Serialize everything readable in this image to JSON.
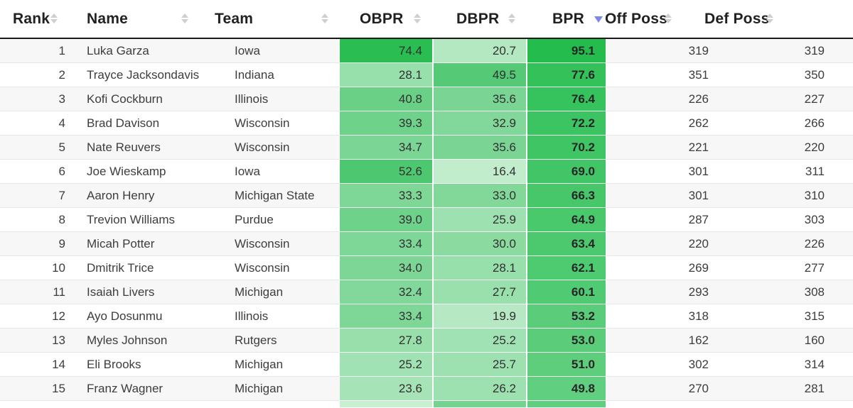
{
  "colors": {
    "row_stripe": "#f7f7f7",
    "row_border": "#e7e7e7",
    "header_border": "#1a1a1a",
    "header_text": "#212121",
    "body_text": "#3d3d3d",
    "sort_icon_inactive": "#cfcfcf",
    "sort_icon_active": "#7b87e6"
  },
  "table": {
    "columns": [
      {
        "key": "rank",
        "label": "Rank",
        "sort": "none"
      },
      {
        "key": "name",
        "label": "Name",
        "sort": "none"
      },
      {
        "key": "team",
        "label": "Team",
        "sort": "none"
      },
      {
        "key": "obpr",
        "label": "OBPR",
        "sort": "none"
      },
      {
        "key": "dbpr",
        "label": "DBPR",
        "sort": "none"
      },
      {
        "key": "bpr",
        "label": "BPR",
        "sort": "desc"
      },
      {
        "key": "off_poss",
        "label": "Off Poss",
        "sort": "none"
      },
      {
        "key": "def_poss",
        "label": "Def Poss",
        "sort": "none"
      }
    ],
    "rows": [
      {
        "rank": "1",
        "name": "Luka Garza",
        "team": "Iowa",
        "obpr": {
          "value": "74.4",
          "color": "#2abd51"
        },
        "dbpr": {
          "value": "20.7",
          "color": "#b3e8c1"
        },
        "bpr": {
          "value": "95.1",
          "color": "#23bc4d"
        },
        "off_poss": "319",
        "def_poss": "319"
      },
      {
        "rank": "2",
        "name": "Trayce Jacksondavis",
        "team": "Indiana",
        "obpr": {
          "value": "28.1",
          "color": "#97dfab"
        },
        "dbpr": {
          "value": "49.5",
          "color": "#55c976"
        },
        "bpr": {
          "value": "77.6",
          "color": "#35c15a"
        },
        "off_poss": "351",
        "def_poss": "350"
      },
      {
        "rank": "3",
        "name": "Kofi Cockburn",
        "team": "Illinois",
        "obpr": {
          "value": "40.8",
          "color": "#69d086"
        },
        "dbpr": {
          "value": "35.6",
          "color": "#7ad493"
        },
        "bpr": {
          "value": "76.4",
          "color": "#36c25c"
        },
        "off_poss": "226",
        "def_poss": "227"
      },
      {
        "rank": "4",
        "name": "Brad Davison",
        "team": "Wisconsin",
        "obpr": {
          "value": "39.3",
          "color": "#6ed28a"
        },
        "dbpr": {
          "value": "32.9",
          "color": "#82d89a"
        },
        "bpr": {
          "value": "72.2",
          "color": "#3dc462"
        },
        "off_poss": "262",
        "def_poss": "266"
      },
      {
        "rank": "5",
        "name": "Nate Reuvers",
        "team": "Wisconsin",
        "obpr": {
          "value": "34.7",
          "color": "#7bd594"
        },
        "dbpr": {
          "value": "35.6",
          "color": "#7ad493"
        },
        "bpr": {
          "value": "70.2",
          "color": "#40c565"
        },
        "off_poss": "221",
        "def_poss": "220"
      },
      {
        "rank": "6",
        "name": "Joe Wieskamp",
        "team": "Iowa",
        "obpr": {
          "value": "52.6",
          "color": "#4ec771"
        },
        "dbpr": {
          "value": "16.4",
          "color": "#c1edcc"
        },
        "bpr": {
          "value": "69.0",
          "color": "#42c566"
        },
        "off_poss": "301",
        "def_poss": "311"
      },
      {
        "rank": "7",
        "name": "Aaron Henry",
        "team": "Michigan State",
        "obpr": {
          "value": "33.3",
          "color": "#7fd797"
        },
        "dbpr": {
          "value": "33.0",
          "color": "#81d899"
        },
        "bpr": {
          "value": "66.3",
          "color": "#47c76a"
        },
        "off_poss": "301",
        "def_poss": "310"
      },
      {
        "rank": "8",
        "name": "Trevion Williams",
        "team": "Purdue",
        "obpr": {
          "value": "39.0",
          "color": "#6fd28b"
        },
        "dbpr": {
          "value": "25.9",
          "color": "#9ee1b1"
        },
        "bpr": {
          "value": "64.9",
          "color": "#49c86c"
        },
        "off_poss": "287",
        "def_poss": "303"
      },
      {
        "rank": "9",
        "name": "Micah Potter",
        "team": "Wisconsin",
        "obpr": {
          "value": "33.4",
          "color": "#7fd797"
        },
        "dbpr": {
          "value": "30.0",
          "color": "#8bdba1"
        },
        "bpr": {
          "value": "63.4",
          "color": "#4cc96e"
        },
        "off_poss": "220",
        "def_poss": "226"
      },
      {
        "rank": "10",
        "name": "Dmitrik Trice",
        "team": "Wisconsin",
        "obpr": {
          "value": "34.0",
          "color": "#7dd695"
        },
        "dbpr": {
          "value": "28.1",
          "color": "#97dfab"
        },
        "bpr": {
          "value": "62.1",
          "color": "#4eca70"
        },
        "off_poss": "269",
        "def_poss": "277"
      },
      {
        "rank": "11",
        "name": "Isaiah Livers",
        "team": "Michigan",
        "obpr": {
          "value": "32.4",
          "color": "#82d89a"
        },
        "dbpr": {
          "value": "27.7",
          "color": "#99e0ad"
        },
        "bpr": {
          "value": "60.1",
          "color": "#51cb73"
        },
        "off_poss": "293",
        "def_poss": "308"
      },
      {
        "rank": "12",
        "name": "Ayo Dosunmu",
        "team": "Illinois",
        "obpr": {
          "value": "33.4",
          "color": "#7fd797"
        },
        "dbpr": {
          "value": "19.9",
          "color": "#b6e9c3"
        },
        "bpr": {
          "value": "53.2",
          "color": "#5bcd7a"
        },
        "off_poss": "318",
        "def_poss": "315"
      },
      {
        "rank": "13",
        "name": "Myles Johnson",
        "team": "Rutgers",
        "obpr": {
          "value": "27.8",
          "color": "#98dfac"
        },
        "dbpr": {
          "value": "25.2",
          "color": "#a0e2b3"
        },
        "bpr": {
          "value": "53.0",
          "color": "#5bcd7a"
        },
        "off_poss": "162",
        "def_poss": "160"
      },
      {
        "rank": "14",
        "name": "Eli Brooks",
        "team": "Michigan",
        "obpr": {
          "value": "25.2",
          "color": "#a0e2b3"
        },
        "dbpr": {
          "value": "25.7",
          "color": "#9ee1b1"
        },
        "bpr": {
          "value": "51.0",
          "color": "#5ece7d"
        },
        "off_poss": "302",
        "def_poss": "314"
      },
      {
        "rank": "15",
        "name": "Franz Wagner",
        "team": "Michigan",
        "obpr": {
          "value": "23.6",
          "color": "#a6e3b7"
        },
        "dbpr": {
          "value": "26.2",
          "color": "#9de1b0"
        },
        "bpr": {
          "value": "49.8",
          "color": "#60cf7f"
        },
        "off_poss": "270",
        "def_poss": "281"
      }
    ],
    "partial_row": {
      "obpr_color": "#c9efd3",
      "dbpr_color": "#73d38f",
      "bpr_color": "#60cf7f"
    }
  }
}
